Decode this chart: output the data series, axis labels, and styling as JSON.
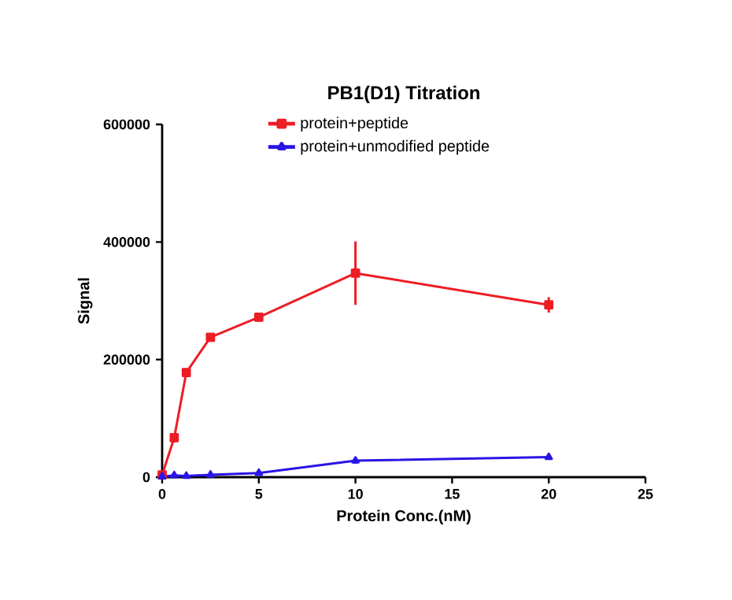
{
  "chart_data": {
    "type": "line",
    "title": "PB1(D1) Titration",
    "xlabel": "Protein Conc.(nM)",
    "ylabel": "Signal",
    "x": [
      0,
      0.625,
      1.25,
      2.5,
      5,
      10,
      20
    ],
    "series": [
      {
        "name": "protein+peptide",
        "color": "#ee1c25",
        "marker": "square",
        "values": [
          4000,
          67000,
          178000,
          238000,
          272000,
          347000,
          293000
        ],
        "errors": [
          null,
          8000,
          null,
          null,
          7500,
          54000,
          13000
        ]
      },
      {
        "name": "protein+unmodified peptide",
        "color": "#2a14e6",
        "marker": "triangle",
        "values": [
          1000,
          3000,
          2000,
          4000,
          7000,
          28000,
          34000
        ],
        "errors": [
          null,
          null,
          null,
          null,
          null,
          5000,
          null
        ]
      }
    ],
    "xlim": [
      0,
      25
    ],
    "xticks": [
      0,
      5,
      10,
      15,
      20,
      25
    ],
    "ylim": [
      0,
      600000
    ],
    "yticks": [
      0,
      200000,
      400000,
      600000
    ],
    "legend": "top",
    "grid": false
  }
}
